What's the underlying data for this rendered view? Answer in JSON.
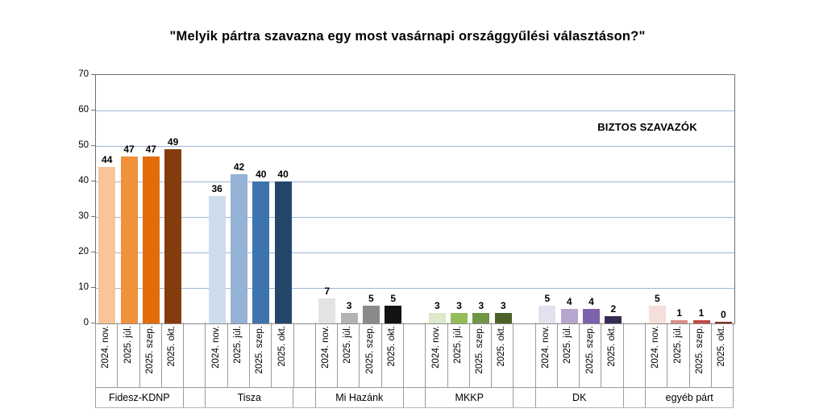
{
  "chart_data": {
    "type": "bar",
    "title": "\"Melyik pártra szavazna egy most vasárnapi országgyűlési választáson?\"",
    "annotation": "BIZTOS SZAVAZÓK",
    "categories": [
      "2024. nov.",
      "2025. júl.",
      "2025. szep.",
      "2025. okt."
    ],
    "ylim": [
      0,
      70
    ],
    "yticks": [
      0,
      10,
      20,
      30,
      40,
      50,
      60,
      70
    ],
    "grid": "horizontal",
    "legend": "none",
    "series": [
      {
        "name": "Fidesz-KDNP",
        "values": [
          44,
          47,
          47,
          49
        ],
        "colors": [
          "#F8C499",
          "#F0913C",
          "#E36C0A",
          "#843C0C"
        ]
      },
      {
        "name": "Tisza",
        "values": [
          36,
          42,
          40,
          40
        ],
        "colors": [
          "#CFDCEE",
          "#94B2D6",
          "#3E74AE",
          "#24466B"
        ]
      },
      {
        "name": "Mi Hazánk",
        "values": [
          7,
          3,
          5,
          5
        ],
        "colors": [
          "#E3E3E3",
          "#B3B3B3",
          "#8A8A8A",
          "#121212"
        ]
      },
      {
        "name": "MKKP",
        "values": [
          3,
          3,
          3,
          3
        ],
        "colors": [
          "#DCE9CB",
          "#93BD59",
          "#719547",
          "#4A6227"
        ]
      },
      {
        "name": "DK",
        "values": [
          5,
          4,
          4,
          2
        ],
        "colors": [
          "#E5E0EE",
          "#B4A6CD",
          "#7C63AB",
          "#362A52"
        ]
      },
      {
        "name": "egyéb párt",
        "values": [
          5,
          1,
          1,
          0
        ],
        "colors": [
          "#F4DFDA",
          "#DA8F85",
          "#BF4B47",
          "#7B2C23"
        ]
      }
    ],
    "style_colors": {
      "gridline": "#9FB6D9",
      "plot_border": "#707070",
      "axis_table_border": "#9C9C9C",
      "label_text": "#000000"
    }
  }
}
